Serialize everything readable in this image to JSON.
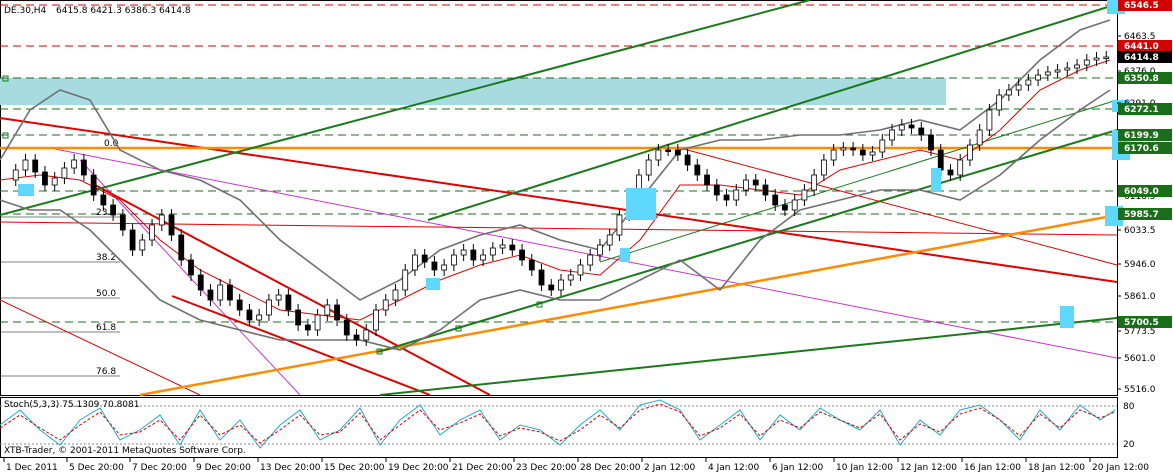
{
  "header": {
    "symbol": "DE.30,H4",
    "ohlc": "6415.8 6421.3 6386.3 6414.8"
  },
  "price_axis": {
    "ticks": [
      "6463.5",
      "6376.0",
      "6291.0",
      "6118.5",
      "6033.5",
      "5946.0",
      "5861.0",
      "5773.5",
      "5601.0",
      "5516.0"
    ],
    "levels": [
      {
        "label": "6546.5",
        "color": "#d40000"
      },
      {
        "label": "6441.0",
        "color": "#d40000"
      },
      {
        "label": "6414.8",
        "color": "#000000"
      },
      {
        "label": "6350.8",
        "color": "#1a6e1a"
      },
      {
        "label": "6272.1",
        "color": "#1a6e1a"
      },
      {
        "label": "6199.9",
        "color": "#1a6e1a"
      },
      {
        "label": "6170.6",
        "color": "#1a6e1a"
      },
      {
        "label": "6049.0",
        "color": "#1a6e1a"
      },
      {
        "label": "5985.7",
        "color": "#1a6e1a"
      },
      {
        "label": "5700.5",
        "color": "#1a6e1a"
      }
    ]
  },
  "time_axis": {
    "labels": [
      "1 Dec 2011",
      "5 Dec 20:00",
      "7 Dec 20:00",
      "9 Dec 20:00",
      "13 Dec 20:00",
      "15 Dec 20:00",
      "19 Dec 20:00",
      "21 Dec 20:00",
      "23 Dec 20:00",
      "28 Dec 20:00",
      "2 Jan 12:00",
      "4 Jan 12:00",
      "6 Jan 12:00",
      "10 Jan 12:00",
      "12 Jan 12:00",
      "16 Jan 12:00",
      "18 Jan 12:00",
      "20 Jan 12:00"
    ]
  },
  "fib_levels": [
    "0.0",
    "23.6",
    "38.2",
    "50.0",
    "61.8",
    "76.8"
  ],
  "stochastic": {
    "label": "Stoch(5,3,3) 75.1309 70.8081",
    "scale": [
      "80",
      "20"
    ]
  },
  "copyright": "XTB-Trader, © 2001-2011 MetaQuotes Software Corp.",
  "colors": {
    "bullish_candle": "#ffffff",
    "bearish_candle": "#000000",
    "support_resistance": "#1a6e1a",
    "trend_red": "#e00000",
    "trend_orange": "#ff8c00",
    "trend_green": "#1a7a1a",
    "zone_cyan": "#5fd8ff",
    "zone_band": "#a8dbe0",
    "bollinger": "#707070",
    "ma_red": "#e00000",
    "fan_magenta": "#cc33cc",
    "stoch_main": "#22aacc",
    "stoch_signal": "#e00000"
  }
}
